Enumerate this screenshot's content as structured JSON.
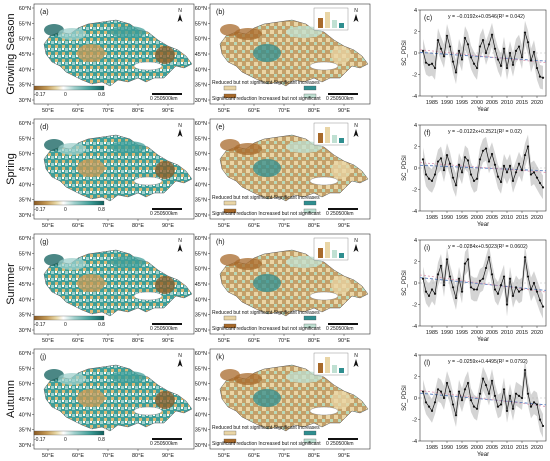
{
  "rows": [
    {
      "label": "Growing Season",
      "map_a": "(a)",
      "map_b": "(b)",
      "chart": "(c)",
      "equation": "y = −0.0192x+0.0546(R² = 0.042)"
    },
    {
      "label": "Spring",
      "map_a": "(d)",
      "map_b": "(e)",
      "chart": "(f)",
      "equation": "y = −0.0122x+0.2521(R² = 0.02)"
    },
    {
      "label": "Summer",
      "map_a": "(g)",
      "map_b": "(h)",
      "chart": "(i)",
      "equation": "y = −0.0284x+0.5023(R² = 0.0602)"
    },
    {
      "label": "Autumn",
      "map_a": "(j)",
      "map_b": "(k)",
      "chart": "(l)",
      "equation": "y = −0.0259x+0.4495(R² = 0.0792)"
    }
  ],
  "map_axes": {
    "lat_labels": [
      "60°N",
      "55°N",
      "50°N",
      "45°N",
      "40°N",
      "35°N",
      "30°N"
    ],
    "lon_labels": [
      "50°E",
      "60°E",
      "70°E",
      "80°E",
      "90°E"
    ],
    "north": "N",
    "scale_bar": "0 250500km"
  },
  "slope_legend": {
    "min": "-0.17",
    "mid": "0",
    "max": "0.8",
    "colors": [
      "#8a5a24",
      "#c59a55",
      "#e9d9a8",
      "#ffffff",
      "#9fd0cc",
      "#3f9e98",
      "#0f5f5c"
    ]
  },
  "trend_legend": {
    "items": [
      {
        "label": "Reduced but not significant",
        "color": "#e9d5a6"
      },
      {
        "label": "Significant increases",
        "color": "#2f8e8f"
      },
      {
        "label": "Significant reduction",
        "color": "#a86a2b"
      },
      {
        "label": "Increased but not significant",
        "color": "#bfe0d2"
      }
    ]
  },
  "chart_axes": {
    "ylabel": "SC_PDSI",
    "xlabel": "Year",
    "xticks": [
      "1985",
      "1990",
      "1995",
      "2000",
      "2005",
      "2010",
      "2015",
      "2020"
    ],
    "yticks": [
      "4",
      "2",
      "0",
      "-2",
      "-4"
    ]
  },
  "chart_data": [
    {
      "type": "line",
      "panel": "(c)",
      "x": [
        1982,
        1983,
        1984,
        1985,
        1986,
        1987,
        1988,
        1989,
        1990,
        1991,
        1992,
        1993,
        1994,
        1995,
        1996,
        1997,
        1998,
        1999,
        2000,
        2001,
        2002,
        2003,
        2004,
        2005,
        2006,
        2007,
        2008,
        2009,
        2010,
        2011,
        2012,
        2013,
        2014,
        2015,
        2016,
        2017,
        2018,
        2019,
        2020,
        2021,
        2022
      ],
      "values": [
        0.2,
        -0.9,
        -1.1,
        -1.0,
        -1.4,
        1.2,
        0.4,
        -0.3,
        1.6,
        0.6,
        -0.8,
        -1.8,
        0.2,
        -0.6,
        1.4,
        0.8,
        -0.4,
        -1.0,
        -1.4,
        0.6,
        1.2,
        0.0,
        0.8,
        1.7,
        0.4,
        -0.6,
        -1.2,
        0.4,
        -1.4,
        0.0,
        -1.1,
        0.2,
        0.6,
        -0.4,
        1.9,
        1.0,
        -0.7,
        0.1,
        -1.4,
        -2.2,
        -2.3
      ],
      "trend": {
        "slope": -0.0192,
        "intercept": 0.0546,
        "r2": 0.042
      },
      "ylim": [
        -4,
        4
      ],
      "xlim": [
        1981,
        2023
      ]
    },
    {
      "type": "line",
      "panel": "(f)",
      "x": [
        1982,
        1983,
        1984,
        1985,
        1986,
        1987,
        1988,
        1989,
        1990,
        1991,
        1992,
        1993,
        1994,
        1995,
        1996,
        1997,
        1998,
        1999,
        2000,
        2001,
        2002,
        2003,
        2004,
        2005,
        2006,
        2007,
        2008,
        2009,
        2010,
        2011,
        2012,
        2013,
        2014,
        2015,
        2016,
        2017,
        2018,
        2019,
        2020,
        2021,
        2022
      ],
      "values": [
        0.8,
        -0.6,
        -1.0,
        -1.2,
        -0.6,
        0.6,
        0.9,
        -0.2,
        1.2,
        0.4,
        -0.9,
        -1.6,
        0.3,
        -0.4,
        1.0,
        0.7,
        -0.6,
        -1.2,
        -1.0,
        0.8,
        1.6,
        1.8,
        0.6,
        1.3,
        0.3,
        -0.8,
        -1.3,
        0.2,
        -0.4,
        0.2,
        -1.2,
        -0.4,
        0.4,
        -0.2,
        1.2,
        2.0,
        -0.6,
        -0.4,
        -0.9,
        -1.4,
        -1.8
      ],
      "trend": {
        "slope": -0.0122,
        "intercept": 0.2521,
        "r2": 0.02
      },
      "ylim": [
        -4,
        4
      ],
      "xlim": [
        1981,
        2023
      ]
    },
    {
      "type": "line",
      "panel": "(i)",
      "x": [
        1982,
        1983,
        1984,
        1985,
        1986,
        1987,
        1988,
        1989,
        1990,
        1991,
        1992,
        1993,
        1994,
        1995,
        1996,
        1997,
        1998,
        1999,
        2000,
        2001,
        2002,
        2003,
        2004,
        2005,
        2006,
        2007,
        2008,
        2009,
        2010,
        2011,
        2012,
        2013,
        2014,
        2015,
        2016,
        2017,
        2018,
        2019,
        2020,
        2021,
        2022
      ],
      "values": [
        0.4,
        -0.8,
        -1.2,
        -0.6,
        -1.0,
        0.8,
        1.6,
        -0.2,
        2.2,
        0.6,
        -0.4,
        -1.4,
        0.4,
        -0.8,
        1.8,
        2.2,
        -0.4,
        -0.6,
        -0.6,
        0.2,
        0.4,
        1.4,
        2.4,
        0.8,
        -0.6,
        -1.0,
        -0.2,
        0.6,
        -2.0,
        0.4,
        -1.2,
        -0.4,
        -0.8,
        -0.6,
        2.4,
        0.6,
        -0.6,
        0.0,
        -0.8,
        -1.6,
        -2.2
      ],
      "trend": {
        "slope": -0.0284,
        "intercept": 0.5023,
        "r2": 0.0602
      },
      "ylim": [
        -4,
        4
      ],
      "xlim": [
        1981,
        2023
      ]
    },
    {
      "type": "line",
      "panel": "(l)",
      "x": [
        1982,
        1983,
        1984,
        1985,
        1986,
        1987,
        1988,
        1989,
        1990,
        1991,
        1992,
        1993,
        1994,
        1995,
        1996,
        1997,
        1998,
        1999,
        2000,
        2001,
        2002,
        2003,
        2004,
        2005,
        2006,
        2007,
        2008,
        2009,
        2010,
        2011,
        2012,
        2013,
        2014,
        2015,
        2016,
        2017,
        2018,
        2019,
        2020,
        2021,
        2022
      ],
      "values": [
        0.6,
        -0.4,
        -0.8,
        -1.2,
        -0.4,
        0.8,
        0.6,
        0.0,
        1.4,
        0.6,
        -0.6,
        -1.6,
        0.6,
        -0.2,
        0.8,
        1.4,
        -0.2,
        -0.8,
        -1.0,
        0.4,
        1.8,
        1.2,
        0.4,
        1.6,
        0.2,
        -0.8,
        -0.6,
        0.8,
        -1.2,
        0.2,
        -1.0,
        0.4,
        0.2,
        0.0,
        2.6,
        0.4,
        -0.8,
        -0.4,
        -0.6,
        -2.0,
        -2.6
      ],
      "trend": {
        "slope": -0.0259,
        "intercept": 0.4495,
        "r2": 0.0792
      },
      "ylim": [
        -4,
        4
      ],
      "xlim": [
        1981,
        2023
      ]
    }
  ]
}
